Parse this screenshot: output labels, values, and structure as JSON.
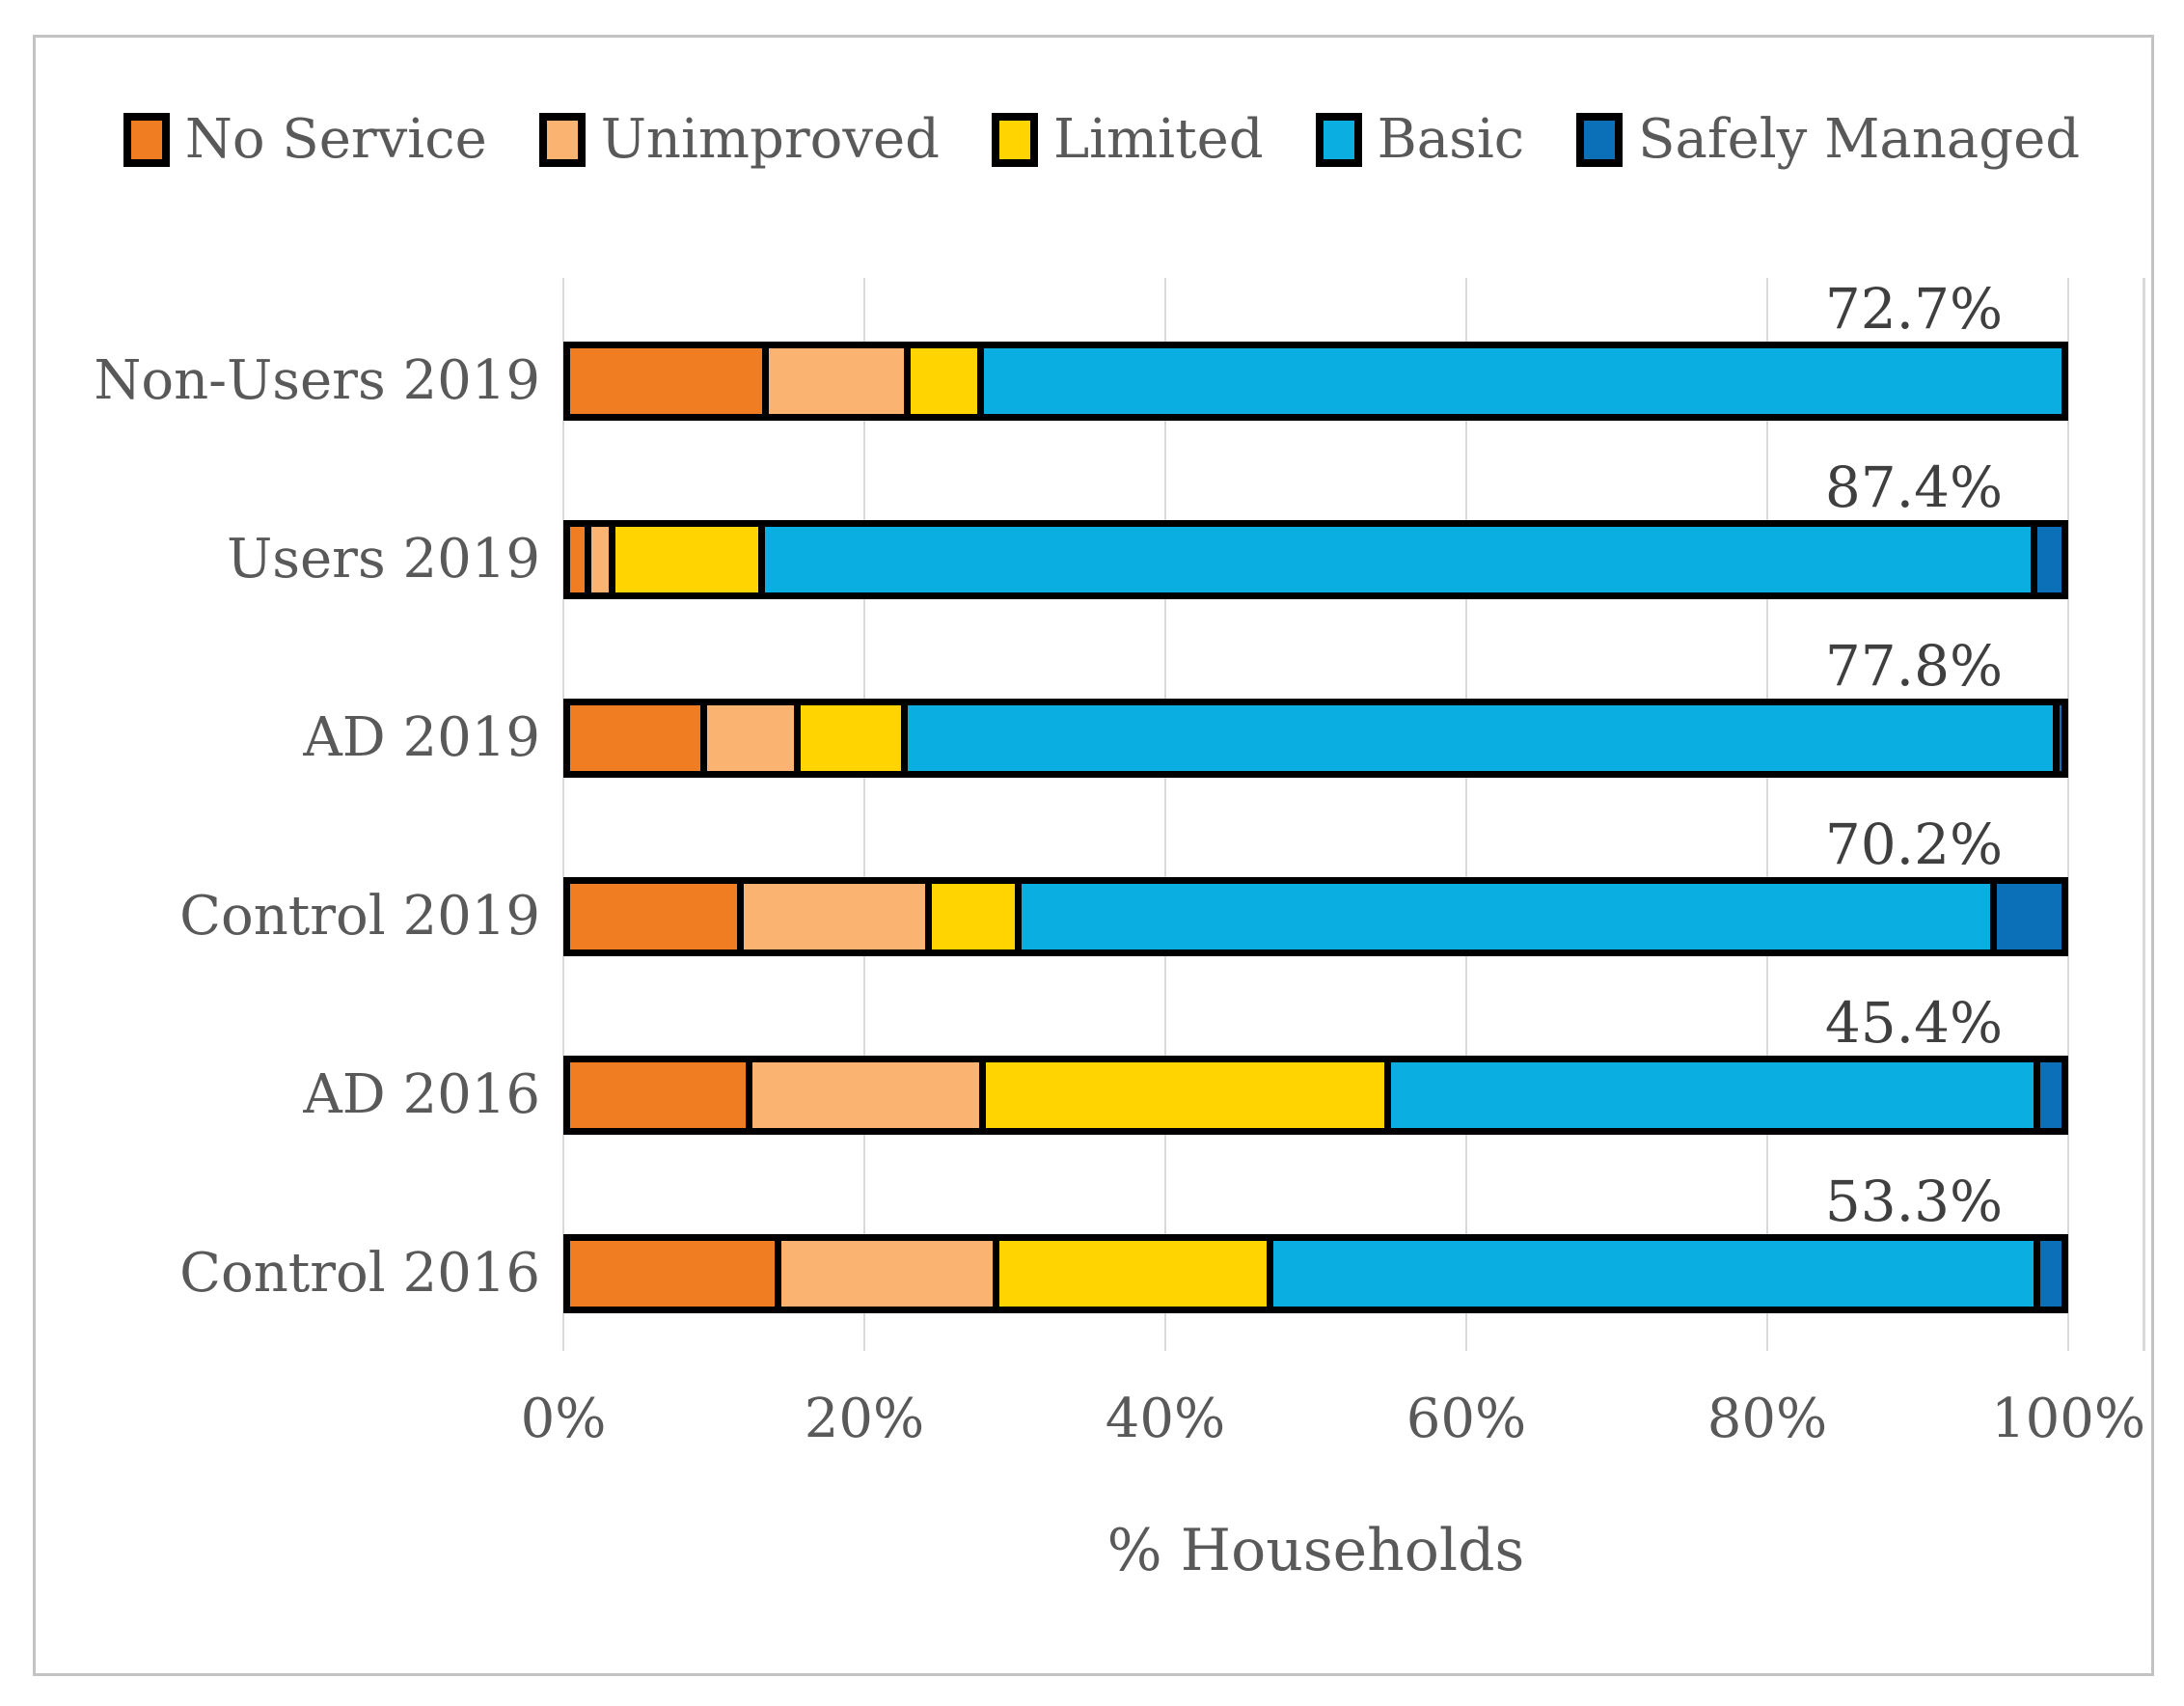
{
  "chart_data": {
    "type": "bar",
    "orientation": "horizontal",
    "stacked": true,
    "title": "",
    "xlabel": "% Households",
    "ylabel": "",
    "xlim": [
      0,
      100
    ],
    "x_ticks": [
      "0%",
      "20%",
      "40%",
      "60%",
      "80%",
      "100%"
    ],
    "grid": "vertical",
    "legend_position": "top",
    "categories": [
      "Non-Users 2019",
      "Users 2019",
      "AD 2019",
      "Control 2019",
      "AD 2016",
      "Control 2016"
    ],
    "series": [
      {
        "name": "No Service",
        "color": "#F07D22",
        "values": [
          12.9,
          1.0,
          8.7,
          11.2,
          11.8,
          13.7
        ]
      },
      {
        "name": "Unimproved",
        "color": "#FBB371",
        "values": [
          9.5,
          1.6,
          6.3,
          12.6,
          15.6,
          14.6
        ]
      },
      {
        "name": "Limited",
        "color": "#FFD400",
        "values": [
          4.9,
          10.0,
          7.2,
          6.0,
          27.2,
          18.4
        ]
      },
      {
        "name": "Basic",
        "color": "#0BAEE1",
        "values": [
          72.7,
          85.3,
          77.2,
          65.4,
          43.5,
          51.4
        ]
      },
      {
        "name": "Safely Managed",
        "color": "#0C70B8",
        "values": [
          0.0,
          2.1,
          0.6,
          4.8,
          1.9,
          1.9
        ]
      }
    ],
    "bar_labels": [
      "72.7%",
      "87.4%",
      "77.8%",
      "70.2%",
      "45.4%",
      "53.3%"
    ]
  },
  "colors": {
    "gridline": "#D9D9D9",
    "bar_outline": "#000000",
    "frame_border": "#C3C3C3",
    "axis_text": "#595959",
    "bar_label_text": "#3F3F3F"
  }
}
